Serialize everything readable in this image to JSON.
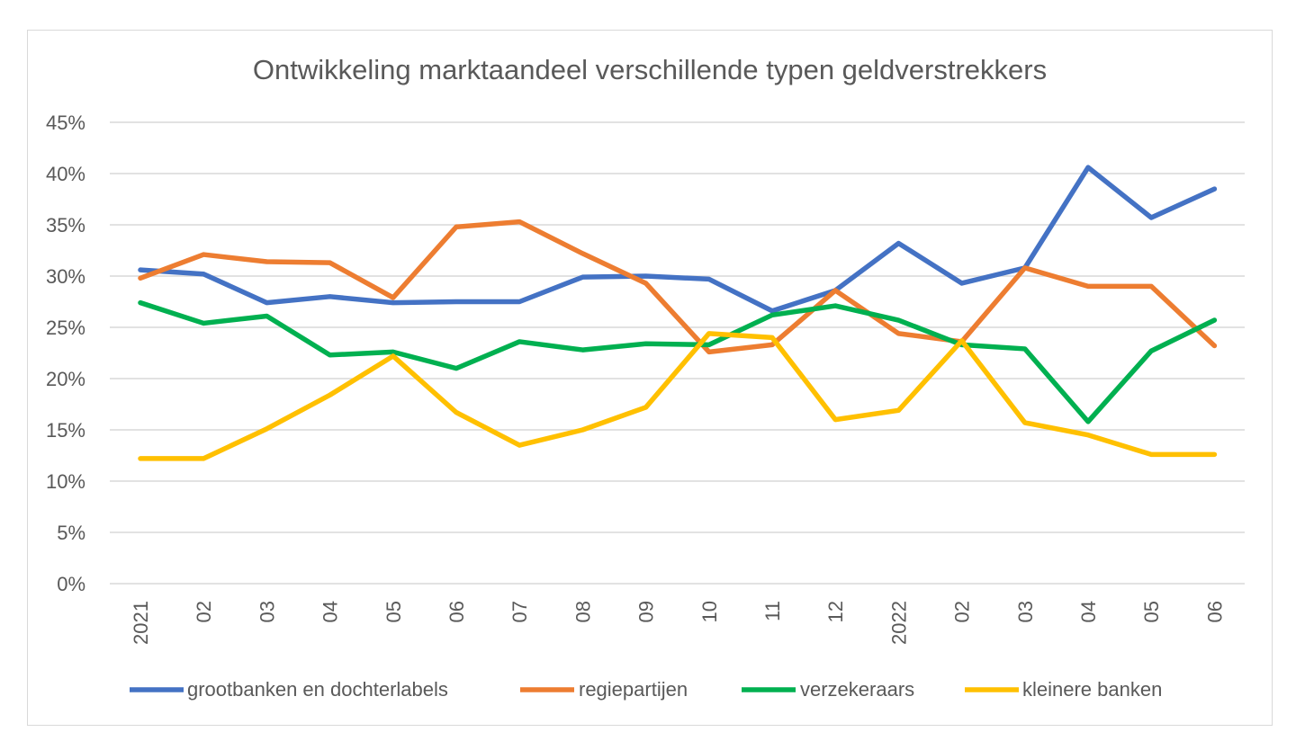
{
  "chart_data": {
    "type": "line",
    "title": "Ontwikkeling marktaandeel verschillende typen geldverstrekkers",
    "xlabel": "",
    "ylabel": "",
    "categories": [
      "2021",
      "02",
      "03",
      "04",
      "05",
      "06",
      "07",
      "08",
      "09",
      "10",
      "11",
      "12",
      "2022",
      "02",
      "03",
      "04",
      "05",
      "06"
    ],
    "ylim": [
      0,
      45
    ],
    "yticks": [
      0,
      5,
      10,
      15,
      20,
      25,
      30,
      35,
      40,
      45
    ],
    "ytick_labels": [
      "0%",
      "5%",
      "10%",
      "15%",
      "20%",
      "25%",
      "30%",
      "35%",
      "40%",
      "45%"
    ],
    "grid": true,
    "legend_position": "bottom",
    "series": [
      {
        "name": "grootbanken en dochterlabels",
        "color": "#4472C4",
        "values": [
          30.6,
          30.2,
          27.4,
          28.0,
          27.4,
          27.5,
          27.5,
          29.9,
          30.0,
          29.7,
          26.6,
          28.6,
          33.2,
          29.3,
          30.8,
          40.6,
          35.7,
          38.5
        ]
      },
      {
        "name": "regiepartijen",
        "color": "#ED7D31",
        "values": [
          29.8,
          32.1,
          31.4,
          31.3,
          27.9,
          34.8,
          35.3,
          32.2,
          29.3,
          22.6,
          23.3,
          28.6,
          24.4,
          23.6,
          30.8,
          29.0,
          29.0,
          23.2
        ]
      },
      {
        "name": "verzekeraars",
        "color": "#00B050",
        "values": [
          27.4,
          25.4,
          26.1,
          22.3,
          22.6,
          21.0,
          23.6,
          22.8,
          23.4,
          23.3,
          26.2,
          27.1,
          25.7,
          23.3,
          22.9,
          15.8,
          22.7,
          25.7
        ]
      },
      {
        "name": "kleinere banken",
        "color": "#FFC000",
        "values": [
          12.2,
          12.2,
          15.1,
          18.4,
          22.2,
          16.7,
          13.5,
          15.0,
          17.2,
          24.4,
          24.0,
          16.0,
          16.9,
          23.7,
          15.7,
          14.5,
          12.6,
          12.6
        ]
      }
    ]
  }
}
